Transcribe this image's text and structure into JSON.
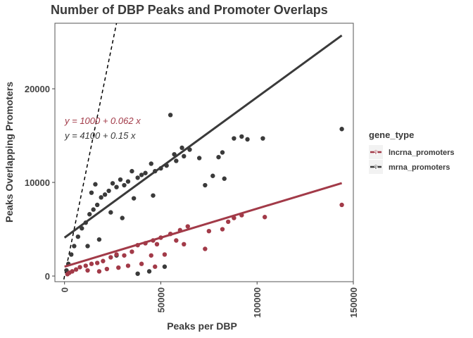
{
  "chart_data": {
    "type": "scatter",
    "title": "Number of DBP Peaks and Promoter Overlaps",
    "xlabel": "Peaks per DBP",
    "ylabel": "Peaks Overlapping Promoters",
    "xlim": [
      -5000,
      150000
    ],
    "ylim": [
      -600,
      27000
    ],
    "x_ticks": [
      0,
      50000,
      100000,
      150000
    ],
    "x_tick_labels": [
      "0",
      "50000",
      "100000",
      "150000"
    ],
    "y_ticks": [
      0,
      10000,
      20000
    ],
    "y_tick_labels": [
      "0",
      "10000",
      "20000"
    ],
    "grid": false,
    "legend": {
      "title": "gene_type",
      "position": "right",
      "key_glyph": "a"
    },
    "series": [
      {
        "name": "lncrna_promoters",
        "color": "#a23a48",
        "fit": {
          "intercept": 1000,
          "slope": 0.062,
          "label_y": "y = 1000 + 0.062  x"
        },
        "points": [
          [
            144000,
            7600
          ],
          [
            104000,
            6300
          ],
          [
            92000,
            6500
          ],
          [
            88000,
            6200
          ],
          [
            85000,
            5800
          ],
          [
            82000,
            5000
          ],
          [
            75000,
            4800
          ],
          [
            73000,
            2900
          ],
          [
            64000,
            5300
          ],
          [
            60000,
            4900
          ],
          [
            55000,
            4500
          ],
          [
            50000,
            4100
          ],
          [
            46000,
            3800
          ],
          [
            42000,
            3500
          ],
          [
            38000,
            3300
          ],
          [
            52000,
            2300
          ],
          [
            45000,
            2200
          ],
          [
            35000,
            2600
          ],
          [
            31000,
            2200
          ],
          [
            27000,
            2300
          ],
          [
            24000,
            2000
          ],
          [
            20000,
            1600
          ],
          [
            17000,
            1400
          ],
          [
            14000,
            1300
          ],
          [
            11000,
            1100
          ],
          [
            8000,
            950
          ],
          [
            6000,
            700
          ],
          [
            4000,
            500
          ],
          [
            2500,
            350
          ],
          [
            1500,
            200
          ],
          [
            12000,
            600
          ],
          [
            18000,
            500
          ],
          [
            22000,
            750
          ],
          [
            28000,
            900
          ],
          [
            33000,
            1100
          ],
          [
            40000,
            1300
          ],
          [
            47000,
            1000
          ],
          [
            58000,
            3800
          ],
          [
            62000,
            3400
          ],
          [
            48000,
            3400
          ]
        ]
      },
      {
        "name": "mrna_promoters",
        "color": "#3a3a3a",
        "fit": {
          "intercept": 4100,
          "slope": 0.15,
          "label_y": "y = 4100 + 0.15  x"
        },
        "points": [
          [
            144000,
            15700
          ],
          [
            103000,
            14700
          ],
          [
            95000,
            14600
          ],
          [
            92000,
            14900
          ],
          [
            88000,
            14700
          ],
          [
            82000,
            13200
          ],
          [
            80000,
            12700
          ],
          [
            83000,
            10400
          ],
          [
            77000,
            10700
          ],
          [
            73000,
            9700
          ],
          [
            65000,
            13500
          ],
          [
            62000,
            12800
          ],
          [
            58000,
            12300
          ],
          [
            55000,
            17200
          ],
          [
            53000,
            11800
          ],
          [
            50000,
            11500
          ],
          [
            47000,
            11200
          ],
          [
            45000,
            12000
          ],
          [
            42000,
            11000
          ],
          [
            40000,
            10800
          ],
          [
            38000,
            10500
          ],
          [
            35000,
            11200
          ],
          [
            33000,
            10100
          ],
          [
            31000,
            9700
          ],
          [
            29000,
            10300
          ],
          [
            27000,
            9500
          ],
          [
            25000,
            9900
          ],
          [
            23000,
            9100
          ],
          [
            21000,
            8700
          ],
          [
            19000,
            8400
          ],
          [
            17000,
            7600
          ],
          [
            15000,
            7100
          ],
          [
            13000,
            6600
          ],
          [
            11000,
            5700
          ],
          [
            9000,
            5100
          ],
          [
            7000,
            4200
          ],
          [
            5000,
            3200
          ],
          [
            3500,
            2300
          ],
          [
            2000,
            1300
          ],
          [
            1000,
            600
          ],
          [
            44000,
            500
          ],
          [
            38000,
            250
          ],
          [
            52000,
            1000
          ],
          [
            27000,
            2200
          ],
          [
            46000,
            8600
          ],
          [
            18000,
            3900
          ],
          [
            12000,
            3200
          ],
          [
            24000,
            6800
          ],
          [
            30000,
            6200
          ],
          [
            36000,
            8300
          ],
          [
            57000,
            13000
          ],
          [
            61000,
            13700
          ],
          [
            70000,
            12600
          ],
          [
            16000,
            9800
          ],
          [
            14000,
            8900
          ]
        ]
      }
    ],
    "reference_line": {
      "intercept": 0,
      "slope": 1,
      "style": "dashed"
    }
  }
}
